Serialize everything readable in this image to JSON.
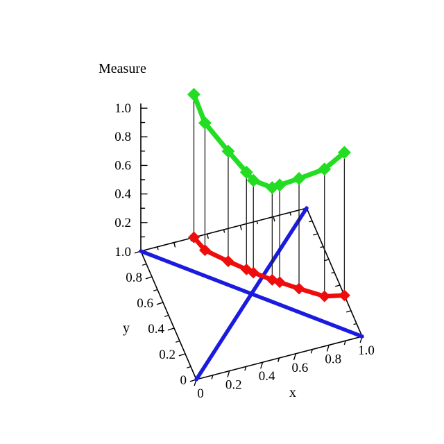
{
  "page": {
    "background": "#ffffff"
  },
  "colors": {
    "axis": "#000000",
    "drop_line": "#1a1a1a",
    "curve_green": "#22dd22",
    "curve_red": "#ee0c0c",
    "diagonal_blue": "#1b1be0",
    "text": "#000000"
  },
  "chart_data": {
    "type": "line",
    "subtype": "3d-curve-with-base-projection",
    "title": "Measure",
    "xlabel": "x",
    "ylabel": "y",
    "zlabel": "Measure",
    "xlim": [
      0,
      1
    ],
    "ylim": [
      0,
      1
    ],
    "zlim": [
      0,
      1
    ],
    "grid": false,
    "legend": null,
    "x_ticks": {
      "values": [
        0,
        0.2,
        0.4,
        0.6,
        0.8,
        1.0
      ],
      "labels": [
        "0",
        "0.2",
        "0.4",
        "0.6",
        "0.8",
        "1.0"
      ],
      "minor": [
        0.1,
        0.3,
        0.5,
        0.7,
        0.9
      ]
    },
    "y_ticks": {
      "values": [
        0,
        0.2,
        0.4,
        0.6,
        0.8,
        1.0
      ],
      "labels": [
        "0",
        "0.2",
        "0.4",
        "0.6",
        "0.8",
        "1.0"
      ],
      "minor": [
        0.1,
        0.3,
        0.5,
        0.7,
        0.9
      ]
    },
    "z_ticks": {
      "values": [
        0.2,
        0.4,
        0.6,
        0.8,
        1.0
      ],
      "labels": [
        "0.2",
        "0.4",
        "0.6",
        "0.8",
        "1.0"
      ],
      "minor": [
        0.1,
        0.3,
        0.5,
        0.7,
        0.9
      ]
    },
    "back_edge_ticks": [
      0.1,
      0.2,
      0.3,
      0.4,
      0.5,
      0.6,
      0.7,
      0.8,
      0.9
    ],
    "series": [
      {
        "name": "measure-curve",
        "type": "line3d",
        "color": "#22dd22",
        "marker": "diamond",
        "drop_lines_to_base": true,
        "points": [
          {
            "x": 0.32,
            "y": 1.0,
            "z": 1.0
          },
          {
            "x": 0.35,
            "y": 0.89,
            "z": 0.89
          },
          {
            "x": 0.45,
            "y": 0.77,
            "z": 0.77
          },
          {
            "x": 0.53,
            "y": 0.68,
            "z": 0.68
          },
          {
            "x": 0.56,
            "y": 0.645,
            "z": 0.645
          },
          {
            "x": 0.645,
            "y": 0.56,
            "z": 0.645
          },
          {
            "x": 0.68,
            "y": 0.53,
            "z": 0.68
          },
          {
            "x": 0.77,
            "y": 0.45,
            "z": 0.77
          },
          {
            "x": 0.89,
            "y": 0.35,
            "z": 0.89
          },
          {
            "x": 1.0,
            "y": 0.32,
            "z": 1.0
          }
        ]
      },
      {
        "name": "base-projection-curve",
        "type": "line3d",
        "color": "#ee0c0c",
        "marker": "diamond",
        "drop_lines_to_base": false,
        "points": [
          {
            "x": 0.32,
            "y": 1.0,
            "z": 0
          },
          {
            "x": 0.35,
            "y": 0.89,
            "z": 0
          },
          {
            "x": 0.45,
            "y": 0.77,
            "z": 0
          },
          {
            "x": 0.53,
            "y": 0.68,
            "z": 0
          },
          {
            "x": 0.56,
            "y": 0.645,
            "z": 0
          },
          {
            "x": 0.645,
            "y": 0.56,
            "z": 0
          },
          {
            "x": 0.68,
            "y": 0.53,
            "z": 0
          },
          {
            "x": 0.77,
            "y": 0.45,
            "z": 0
          },
          {
            "x": 0.89,
            "y": 0.35,
            "z": 0
          },
          {
            "x": 1.0,
            "y": 0.32,
            "z": 0
          }
        ]
      },
      {
        "name": "main-diagonal",
        "type": "segment3d",
        "color": "#1b1be0",
        "points": [
          {
            "x": 0,
            "y": 0,
            "z": 0
          },
          {
            "x": 1,
            "y": 1,
            "z": 0
          }
        ]
      },
      {
        "name": "anti-diagonal",
        "type": "segment3d",
        "color": "#1b1be0",
        "points": [
          {
            "x": 0,
            "y": 1,
            "z": 0
          },
          {
            "x": 1,
            "y": 0,
            "z": 0
          }
        ]
      }
    ]
  }
}
